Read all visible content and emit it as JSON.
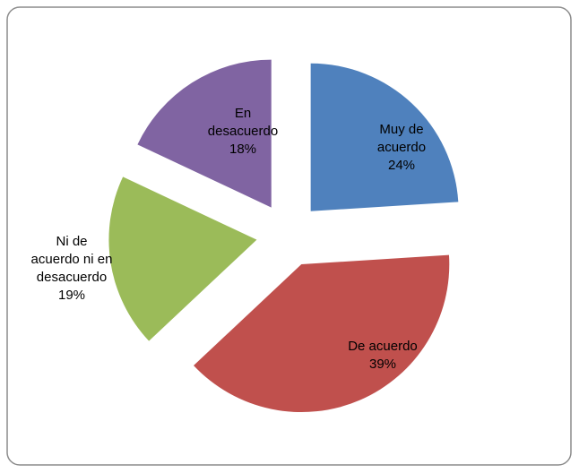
{
  "chart_data": {
    "type": "pie",
    "categories": [
      "Muy de acuerdo",
      "De acuerdo",
      "Ni de acuerdo ni en desacuerdo",
      "En desacuerdo"
    ],
    "values": [
      24,
      39,
      19,
      18
    ],
    "value_labels": [
      "24%",
      "39%",
      "19%",
      "18%"
    ],
    "colors": [
      "#4f81bd",
      "#c0504d",
      "#9bbb59",
      "#8064a2"
    ]
  }
}
